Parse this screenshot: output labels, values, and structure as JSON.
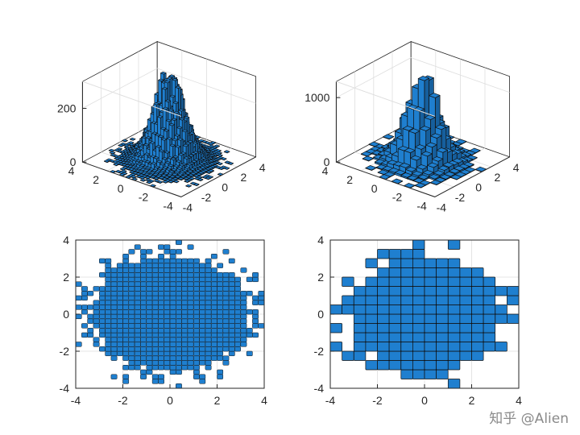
{
  "watermark": "知乎 @Alien",
  "colors": {
    "bar_fill": "#1f7fcf",
    "bar_side": "#165f9d",
    "bar_edge": "#111111",
    "axis": "#262626",
    "grid": "#dedede",
    "plane": "#ffffff"
  },
  "chart_data": [
    {
      "type": "histogram3d",
      "description_bins": "fine bins",
      "bin_width": 0.25,
      "x_range": [
        -4,
        4
      ],
      "y_range": [
        -4,
        4
      ],
      "zlim": [
        0,
        300
      ],
      "peak_count": 295,
      "x_ticks": [
        "-4",
        "-2",
        "0",
        "2",
        "4"
      ],
      "y_ticks": [
        "4",
        "2",
        "0",
        "-2",
        "-4"
      ],
      "z_ticks": [
        "0",
        "200"
      ],
      "z_tick_values": [
        0,
        200
      ],
      "grid": true
    },
    {
      "type": "histogram3d",
      "bin_width": 0.5,
      "x_range": [
        -4,
        4
      ],
      "y_range": [
        -4,
        4
      ],
      "zlim": [
        0,
        1250
      ],
      "peak_count": 1190,
      "x_ticks": [
        "-4",
        "-2",
        "0",
        "2",
        "4"
      ],
      "y_ticks": [
        "4",
        "2",
        "0",
        "-2",
        "-4"
      ],
      "z_ticks": [
        "0",
        "1000"
      ],
      "z_tick_values": [
        0,
        1000
      ],
      "grid": true
    },
    {
      "type": "histogram2d-topview",
      "bin_width": 0.25,
      "xlim": [
        -4,
        4
      ],
      "ylim": [
        -4,
        4
      ],
      "x_ticks": [
        "-4",
        "-2",
        "0",
        "2",
        "4"
      ],
      "y_ticks": [
        "4",
        "2",
        "0",
        "-2",
        "-4"
      ],
      "grid": true
    },
    {
      "type": "histogram2d-topview",
      "bin_width": 0.5,
      "xlim": [
        -4,
        4
      ],
      "ylim": [
        -4,
        4
      ],
      "x_ticks": [
        "-4",
        "-2",
        "0",
        "2",
        "4"
      ],
      "y_ticks": [
        "4",
        "2",
        "0",
        "-2",
        "-4"
      ],
      "grid": true
    }
  ]
}
